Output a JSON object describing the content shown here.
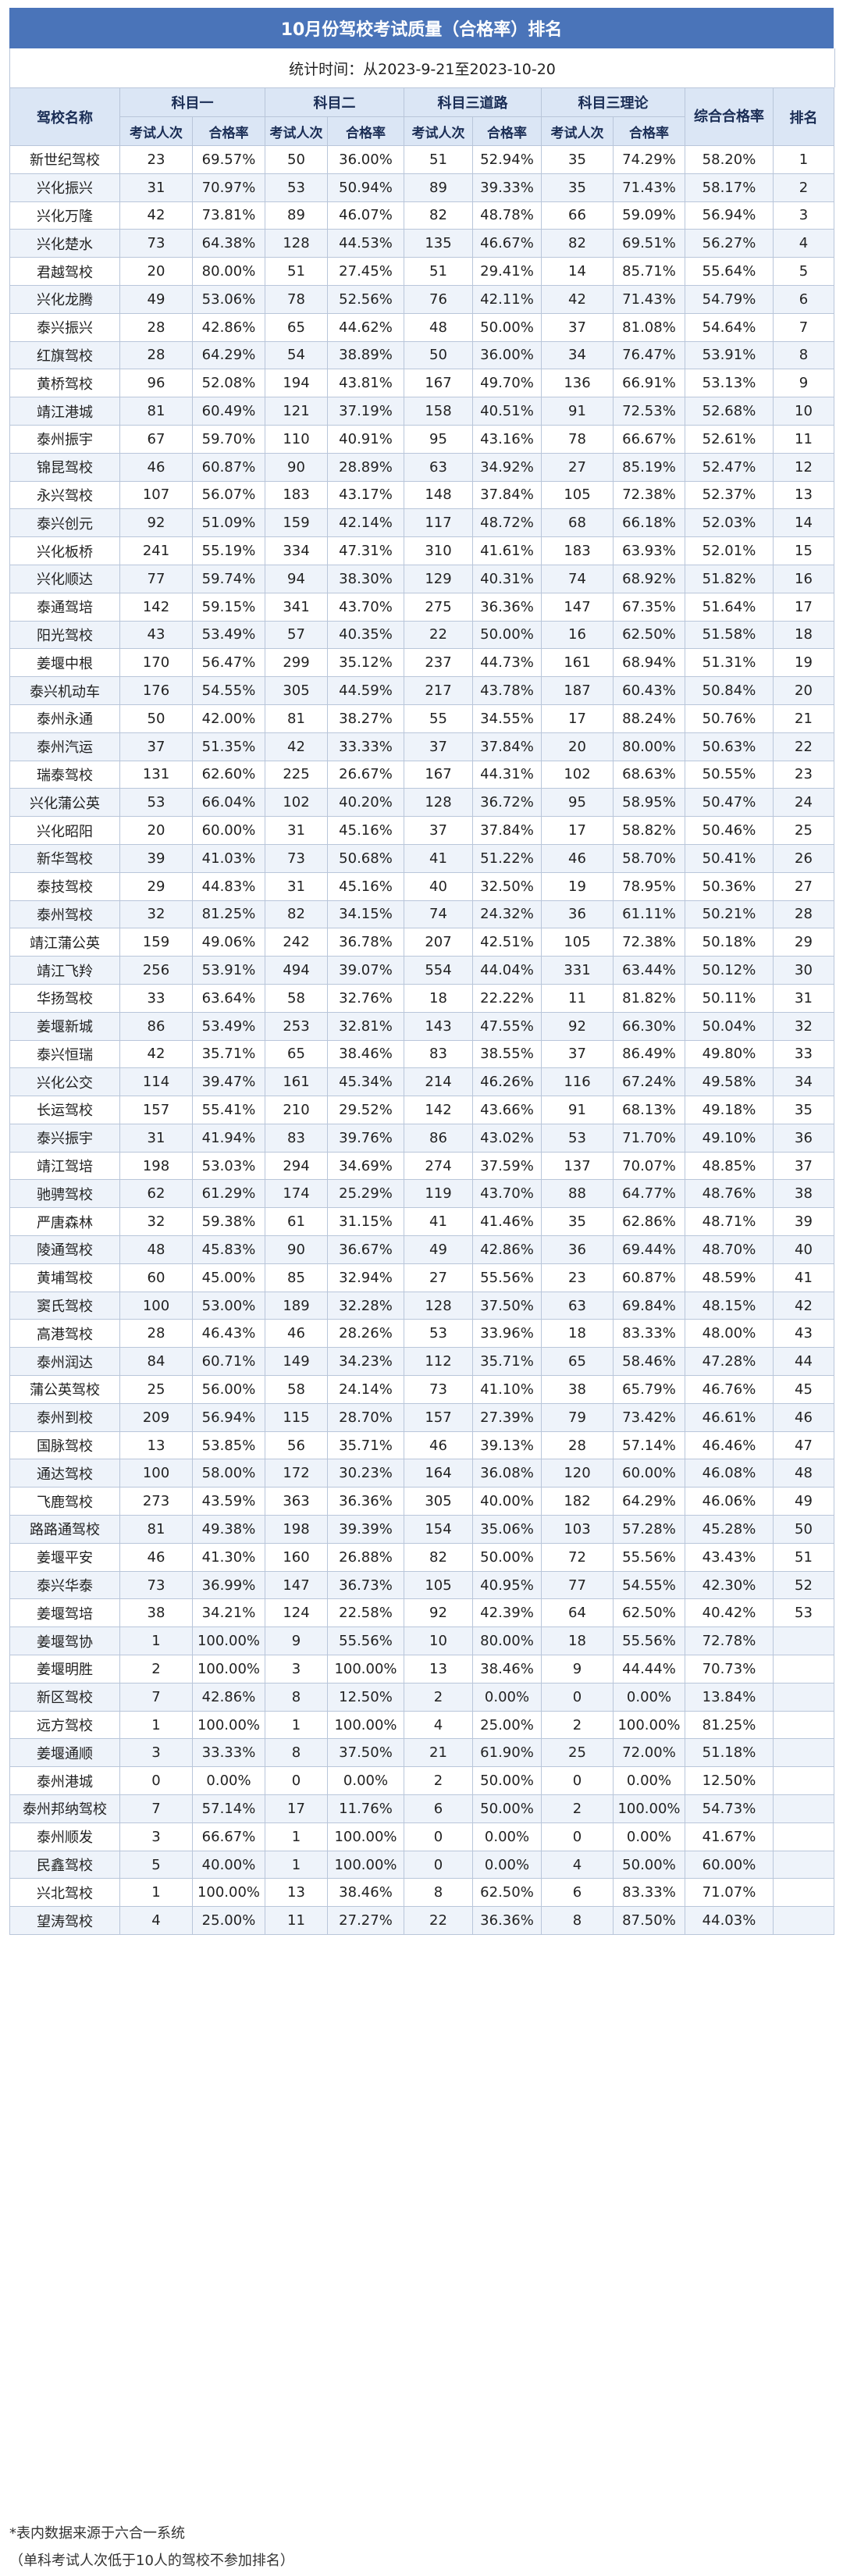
{
  "title": "10月份驾校考试质量（合格率）排名",
  "subtitle": "统计时间：从2023-9-21至2023-10-20",
  "headers": {
    "school": "驾校名称",
    "subject1": "科目一",
    "subject2": "科目二",
    "subject3road": "科目三道路",
    "subject3theory": "科目三理论",
    "overall": "综合合格率",
    "rank": "排名",
    "count": "考试人次",
    "rate": "合格率"
  },
  "rows": [
    [
      "新世纪驾校",
      "23",
      "69.57%",
      "50",
      "36.00%",
      "51",
      "52.94%",
      "35",
      "74.29%",
      "58.20%",
      "1"
    ],
    [
      "兴化振兴",
      "31",
      "70.97%",
      "53",
      "50.94%",
      "89",
      "39.33%",
      "35",
      "71.43%",
      "58.17%",
      "2"
    ],
    [
      "兴化万隆",
      "42",
      "73.81%",
      "89",
      "46.07%",
      "82",
      "48.78%",
      "66",
      "59.09%",
      "56.94%",
      "3"
    ],
    [
      "兴化楚水",
      "73",
      "64.38%",
      "128",
      "44.53%",
      "135",
      "46.67%",
      "82",
      "69.51%",
      "56.27%",
      "4"
    ],
    [
      "君越驾校",
      "20",
      "80.00%",
      "51",
      "27.45%",
      "51",
      "29.41%",
      "14",
      "85.71%",
      "55.64%",
      "5"
    ],
    [
      "兴化龙腾",
      "49",
      "53.06%",
      "78",
      "52.56%",
      "76",
      "42.11%",
      "42",
      "71.43%",
      "54.79%",
      "6"
    ],
    [
      "泰兴振兴",
      "28",
      "42.86%",
      "65",
      "44.62%",
      "48",
      "50.00%",
      "37",
      "81.08%",
      "54.64%",
      "7"
    ],
    [
      "红旗驾校",
      "28",
      "64.29%",
      "54",
      "38.89%",
      "50",
      "36.00%",
      "34",
      "76.47%",
      "53.91%",
      "8"
    ],
    [
      "黄桥驾校",
      "96",
      "52.08%",
      "194",
      "43.81%",
      "167",
      "49.70%",
      "136",
      "66.91%",
      "53.13%",
      "9"
    ],
    [
      "靖江港城",
      "81",
      "60.49%",
      "121",
      "37.19%",
      "158",
      "40.51%",
      "91",
      "72.53%",
      "52.68%",
      "10"
    ],
    [
      "泰州振宇",
      "67",
      "59.70%",
      "110",
      "40.91%",
      "95",
      "43.16%",
      "78",
      "66.67%",
      "52.61%",
      "11"
    ],
    [
      "锦昆驾校",
      "46",
      "60.87%",
      "90",
      "28.89%",
      "63",
      "34.92%",
      "27",
      "85.19%",
      "52.47%",
      "12"
    ],
    [
      "永兴驾校",
      "107",
      "56.07%",
      "183",
      "43.17%",
      "148",
      "37.84%",
      "105",
      "72.38%",
      "52.37%",
      "13"
    ],
    [
      "泰兴创元",
      "92",
      "51.09%",
      "159",
      "42.14%",
      "117",
      "48.72%",
      "68",
      "66.18%",
      "52.03%",
      "14"
    ],
    [
      "兴化板桥",
      "241",
      "55.19%",
      "334",
      "47.31%",
      "310",
      "41.61%",
      "183",
      "63.93%",
      "52.01%",
      "15"
    ],
    [
      "兴化顺达",
      "77",
      "59.74%",
      "94",
      "38.30%",
      "129",
      "40.31%",
      "74",
      "68.92%",
      "51.82%",
      "16"
    ],
    [
      "泰通驾培",
      "142",
      "59.15%",
      "341",
      "43.70%",
      "275",
      "36.36%",
      "147",
      "67.35%",
      "51.64%",
      "17"
    ],
    [
      "阳光驾校",
      "43",
      "53.49%",
      "57",
      "40.35%",
      "22",
      "50.00%",
      "16",
      "62.50%",
      "51.58%",
      "18"
    ],
    [
      "姜堰中根",
      "170",
      "56.47%",
      "299",
      "35.12%",
      "237",
      "44.73%",
      "161",
      "68.94%",
      "51.31%",
      "19"
    ],
    [
      "泰兴机动车",
      "176",
      "54.55%",
      "305",
      "44.59%",
      "217",
      "43.78%",
      "187",
      "60.43%",
      "50.84%",
      "20"
    ],
    [
      "泰州永通",
      "50",
      "42.00%",
      "81",
      "38.27%",
      "55",
      "34.55%",
      "17",
      "88.24%",
      "50.76%",
      "21"
    ],
    [
      "泰州汽运",
      "37",
      "51.35%",
      "42",
      "33.33%",
      "37",
      "37.84%",
      "20",
      "80.00%",
      "50.63%",
      "22"
    ],
    [
      "瑞泰驾校",
      "131",
      "62.60%",
      "225",
      "26.67%",
      "167",
      "44.31%",
      "102",
      "68.63%",
      "50.55%",
      "23"
    ],
    [
      "兴化蒲公英",
      "53",
      "66.04%",
      "102",
      "40.20%",
      "128",
      "36.72%",
      "95",
      "58.95%",
      "50.47%",
      "24"
    ],
    [
      "兴化昭阳",
      "20",
      "60.00%",
      "31",
      "45.16%",
      "37",
      "37.84%",
      "17",
      "58.82%",
      "50.46%",
      "25"
    ],
    [
      "新华驾校",
      "39",
      "41.03%",
      "73",
      "50.68%",
      "41",
      "51.22%",
      "46",
      "58.70%",
      "50.41%",
      "26"
    ],
    [
      "泰技驾校",
      "29",
      "44.83%",
      "31",
      "45.16%",
      "40",
      "32.50%",
      "19",
      "78.95%",
      "50.36%",
      "27"
    ],
    [
      "泰州驾校",
      "32",
      "81.25%",
      "82",
      "34.15%",
      "74",
      "24.32%",
      "36",
      "61.11%",
      "50.21%",
      "28"
    ],
    [
      "靖江蒲公英",
      "159",
      "49.06%",
      "242",
      "36.78%",
      "207",
      "42.51%",
      "105",
      "72.38%",
      "50.18%",
      "29"
    ],
    [
      "靖江飞羚",
      "256",
      "53.91%",
      "494",
      "39.07%",
      "554",
      "44.04%",
      "331",
      "63.44%",
      "50.12%",
      "30"
    ],
    [
      "华扬驾校",
      "33",
      "63.64%",
      "58",
      "32.76%",
      "18",
      "22.22%",
      "11",
      "81.82%",
      "50.11%",
      "31"
    ],
    [
      "姜堰新城",
      "86",
      "53.49%",
      "253",
      "32.81%",
      "143",
      "47.55%",
      "92",
      "66.30%",
      "50.04%",
      "32"
    ],
    [
      "泰兴恒瑞",
      "42",
      "35.71%",
      "65",
      "38.46%",
      "83",
      "38.55%",
      "37",
      "86.49%",
      "49.80%",
      "33"
    ],
    [
      "兴化公交",
      "114",
      "39.47%",
      "161",
      "45.34%",
      "214",
      "46.26%",
      "116",
      "67.24%",
      "49.58%",
      "34"
    ],
    [
      "长运驾校",
      "157",
      "55.41%",
      "210",
      "29.52%",
      "142",
      "43.66%",
      "91",
      "68.13%",
      "49.18%",
      "35"
    ],
    [
      "泰兴振宇",
      "31",
      "41.94%",
      "83",
      "39.76%",
      "86",
      "43.02%",
      "53",
      "71.70%",
      "49.10%",
      "36"
    ],
    [
      "靖江驾培",
      "198",
      "53.03%",
      "294",
      "34.69%",
      "274",
      "37.59%",
      "137",
      "70.07%",
      "48.85%",
      "37"
    ],
    [
      "驰骋驾校",
      "62",
      "61.29%",
      "174",
      "25.29%",
      "119",
      "43.70%",
      "88",
      "64.77%",
      "48.76%",
      "38"
    ],
    [
      "严唐森林",
      "32",
      "59.38%",
      "61",
      "31.15%",
      "41",
      "41.46%",
      "35",
      "62.86%",
      "48.71%",
      "39"
    ],
    [
      "陵通驾校",
      "48",
      "45.83%",
      "90",
      "36.67%",
      "49",
      "42.86%",
      "36",
      "69.44%",
      "48.70%",
      "40"
    ],
    [
      "黄埔驾校",
      "60",
      "45.00%",
      "85",
      "32.94%",
      "27",
      "55.56%",
      "23",
      "60.87%",
      "48.59%",
      "41"
    ],
    [
      "窦氏驾校",
      "100",
      "53.00%",
      "189",
      "32.28%",
      "128",
      "37.50%",
      "63",
      "69.84%",
      "48.15%",
      "42"
    ],
    [
      "高港驾校",
      "28",
      "46.43%",
      "46",
      "28.26%",
      "53",
      "33.96%",
      "18",
      "83.33%",
      "48.00%",
      "43"
    ],
    [
      "泰州润达",
      "84",
      "60.71%",
      "149",
      "34.23%",
      "112",
      "35.71%",
      "65",
      "58.46%",
      "47.28%",
      "44"
    ],
    [
      "蒲公英驾校",
      "25",
      "56.00%",
      "58",
      "24.14%",
      "73",
      "41.10%",
      "38",
      "65.79%",
      "46.76%",
      "45"
    ],
    [
      "泰州到校",
      "209",
      "56.94%",
      "115",
      "28.70%",
      "157",
      "27.39%",
      "79",
      "73.42%",
      "46.61%",
      "46"
    ],
    [
      "国脉驾校",
      "13",
      "53.85%",
      "56",
      "35.71%",
      "46",
      "39.13%",
      "28",
      "57.14%",
      "46.46%",
      "47"
    ],
    [
      "通达驾校",
      "100",
      "58.00%",
      "172",
      "30.23%",
      "164",
      "36.08%",
      "120",
      "60.00%",
      "46.08%",
      "48"
    ],
    [
      "飞鹿驾校",
      "273",
      "43.59%",
      "363",
      "36.36%",
      "305",
      "40.00%",
      "182",
      "64.29%",
      "46.06%",
      "49"
    ],
    [
      "路路通驾校",
      "81",
      "49.38%",
      "198",
      "39.39%",
      "154",
      "35.06%",
      "103",
      "57.28%",
      "45.28%",
      "50"
    ],
    [
      "姜堰平安",
      "46",
      "41.30%",
      "160",
      "26.88%",
      "82",
      "50.00%",
      "72",
      "55.56%",
      "43.43%",
      "51"
    ],
    [
      "泰兴华泰",
      "73",
      "36.99%",
      "147",
      "36.73%",
      "105",
      "40.95%",
      "77",
      "54.55%",
      "42.30%",
      "52"
    ],
    [
      "姜堰驾培",
      "38",
      "34.21%",
      "124",
      "22.58%",
      "92",
      "42.39%",
      "64",
      "62.50%",
      "40.42%",
      "53"
    ],
    [
      "姜堰驾协",
      "1",
      "100.00%",
      "9",
      "55.56%",
      "10",
      "80.00%",
      "18",
      "55.56%",
      "72.78%",
      ""
    ],
    [
      "姜堰明胜",
      "2",
      "100.00%",
      "3",
      "100.00%",
      "13",
      "38.46%",
      "9",
      "44.44%",
      "70.73%",
      ""
    ],
    [
      "新区驾校",
      "7",
      "42.86%",
      "8",
      "12.50%",
      "2",
      "0.00%",
      "0",
      "0.00%",
      "13.84%",
      ""
    ],
    [
      "远方驾校",
      "1",
      "100.00%",
      "1",
      "100.00%",
      "4",
      "25.00%",
      "2",
      "100.00%",
      "81.25%",
      ""
    ],
    [
      "姜堰通顺",
      "3",
      "33.33%",
      "8",
      "37.50%",
      "21",
      "61.90%",
      "25",
      "72.00%",
      "51.18%",
      ""
    ],
    [
      "泰州港城",
      "0",
      "0.00%",
      "0",
      "0.00%",
      "2",
      "50.00%",
      "0",
      "0.00%",
      "12.50%",
      ""
    ],
    [
      "泰州邦纳驾校",
      "7",
      "57.14%",
      "17",
      "11.76%",
      "6",
      "50.00%",
      "2",
      "100.00%",
      "54.73%",
      ""
    ],
    [
      "泰州顺发",
      "3",
      "66.67%",
      "1",
      "100.00%",
      "0",
      "0.00%",
      "0",
      "0.00%",
      "41.67%",
      ""
    ],
    [
      "民鑫驾校",
      "5",
      "40.00%",
      "1",
      "100.00%",
      "0",
      "0.00%",
      "4",
      "50.00%",
      "60.00%",
      ""
    ],
    [
      "兴北驾校",
      "1",
      "100.00%",
      "13",
      "38.46%",
      "8",
      "62.50%",
      "6",
      "83.33%",
      "71.07%",
      ""
    ],
    [
      "望涛驾校",
      "4",
      "25.00%",
      "11",
      "27.27%",
      "22",
      "36.36%",
      "8",
      "87.50%",
      "44.03%",
      ""
    ]
  ],
  "footnotes": [
    "*表内数据来源于六合一系统",
    "（单科考试人次低于10人的驾校不参加排名）"
  ]
}
